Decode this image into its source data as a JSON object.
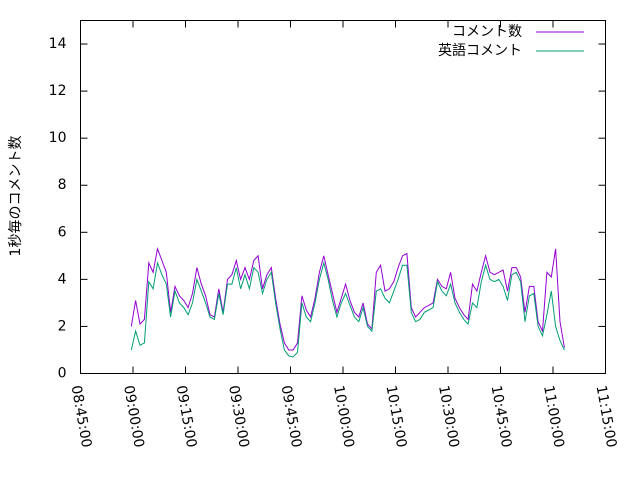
{
  "chart_data": {
    "type": "line",
    "ylabel": "1秒毎のコメント数",
    "x": [
      "08:59:30",
      "09:00:45",
      "09:02:00",
      "09:03:15",
      "09:04:30",
      "09:05:45",
      "09:07:00",
      "09:08:15",
      "09:09:30",
      "09:10:45",
      "09:12:00",
      "09:13:15",
      "09:14:30",
      "09:15:45",
      "09:17:00",
      "09:18:15",
      "09:19:30",
      "09:20:45",
      "09:22:00",
      "09:23:15",
      "09:24:30",
      "09:25:45",
      "09:27:00",
      "09:28:15",
      "09:29:30",
      "09:30:45",
      "09:32:00",
      "09:33:15",
      "09:34:30",
      "09:35:45",
      "09:37:00",
      "09:38:15",
      "09:39:30",
      "09:40:45",
      "09:42:00",
      "09:43:15",
      "09:44:30",
      "09:45:45",
      "09:47:00",
      "09:48:15",
      "09:49:30",
      "09:50:45",
      "09:52:00",
      "09:53:15",
      "09:54:30",
      "09:55:45",
      "09:57:00",
      "09:58:15",
      "09:59:30",
      "10:00:45",
      "10:02:00",
      "10:03:15",
      "10:04:30",
      "10:05:45",
      "10:07:00",
      "10:08:15",
      "10:09:30",
      "10:10:45",
      "10:12:00",
      "10:13:15",
      "10:14:30",
      "10:15:45",
      "10:17:00",
      "10:18:15",
      "10:19:30",
      "10:20:45",
      "10:22:00",
      "10:23:15",
      "10:24:30",
      "10:25:45",
      "10:27:00",
      "10:28:15",
      "10:29:30",
      "10:30:45",
      "10:32:00",
      "10:33:15",
      "10:34:30",
      "10:35:45",
      "10:37:00",
      "10:38:15",
      "10:39:30",
      "10:40:45",
      "10:42:00",
      "10:43:15",
      "10:44:30",
      "10:45:45",
      "10:47:00",
      "10:48:15",
      "10:49:30",
      "10:50:45",
      "10:52:00",
      "10:53:15",
      "10:54:30",
      "10:55:45",
      "10:57:00",
      "10:58:15",
      "10:59:30",
      "11:00:45",
      "11:02:00",
      "11:03:15"
    ],
    "series": [
      {
        "name": "コメント数",
        "color": "#9400d3",
        "values": [
          2.0,
          3.1,
          2.1,
          2.3,
          4.7,
          4.3,
          5.3,
          4.8,
          4.3,
          2.6,
          3.7,
          3.3,
          3.1,
          2.8,
          3.4,
          4.5,
          3.8,
          3.3,
          2.5,
          2.4,
          3.6,
          2.6,
          4.0,
          4.2,
          4.8,
          4.0,
          4.5,
          4.0,
          4.8,
          5.0,
          3.6,
          4.2,
          4.5,
          3.2,
          2.1,
          1.3,
          1.0,
          1.0,
          1.3,
          3.3,
          2.7,
          2.4,
          3.2,
          4.3,
          5.0,
          4.2,
          3.4,
          2.6,
          3.2,
          3.8,
          3.1,
          2.6,
          2.4,
          3.0,
          2.1,
          1.9,
          4.3,
          4.6,
          3.5,
          3.6,
          3.9,
          4.5,
          5.0,
          5.1,
          2.8,
          2.4,
          2.6,
          2.8,
          2.9,
          3.0,
          4.0,
          3.7,
          3.6,
          4.3,
          3.2,
          2.8,
          2.5,
          2.3,
          3.8,
          3.5,
          4.3,
          5.0,
          4.3,
          4.2,
          4.3,
          4.4,
          3.5,
          4.5,
          4.5,
          4.1,
          2.6,
          3.7,
          3.7,
          2.2,
          1.8,
          4.3,
          4.1,
          5.3,
          2.2,
          1.1
        ]
      },
      {
        "name": "英語コメント",
        "color": "#009e73",
        "values": [
          1.0,
          1.8,
          1.2,
          1.3,
          3.9,
          3.6,
          4.7,
          4.2,
          3.8,
          2.4,
          3.5,
          3.0,
          2.8,
          2.5,
          3.0,
          4.0,
          3.5,
          3.0,
          2.4,
          2.3,
          3.4,
          2.5,
          3.8,
          3.8,
          4.5,
          3.6,
          4.2,
          3.6,
          4.5,
          4.3,
          3.4,
          4.0,
          4.3,
          3.0,
          1.9,
          1.0,
          0.75,
          0.7,
          0.9,
          3.0,
          2.4,
          2.2,
          3.0,
          4.0,
          4.7,
          4.0,
          3.1,
          2.4,
          3.0,
          3.4,
          2.9,
          2.4,
          2.2,
          2.8,
          2.0,
          1.8,
          3.5,
          3.6,
          3.2,
          3.0,
          3.5,
          4.0,
          4.6,
          4.6,
          2.6,
          2.2,
          2.3,
          2.6,
          2.7,
          2.8,
          3.9,
          3.5,
          3.3,
          3.8,
          3.0,
          2.6,
          2.3,
          2.1,
          3.0,
          2.8,
          3.9,
          4.6,
          4.0,
          3.9,
          4.0,
          3.7,
          3.1,
          4.2,
          4.3,
          3.9,
          2.2,
          3.3,
          3.4,
          2.0,
          1.6,
          2.5,
          3.5,
          2.0,
          1.4,
          1.0
        ]
      }
    ],
    "xlim": [
      "08:45:00",
      "11:15:00"
    ],
    "xticks": [
      "08:45:00",
      "09:00:00",
      "09:15:00",
      "09:30:00",
      "09:45:00",
      "10:00:00",
      "10:15:00",
      "10:30:00",
      "10:45:00",
      "11:00:00",
      "11:15:00"
    ],
    "ylim": [
      0,
      15
    ],
    "yticks": [
      0,
      2,
      4,
      6,
      8,
      10,
      12,
      14
    ],
    "legend": "top-right"
  }
}
